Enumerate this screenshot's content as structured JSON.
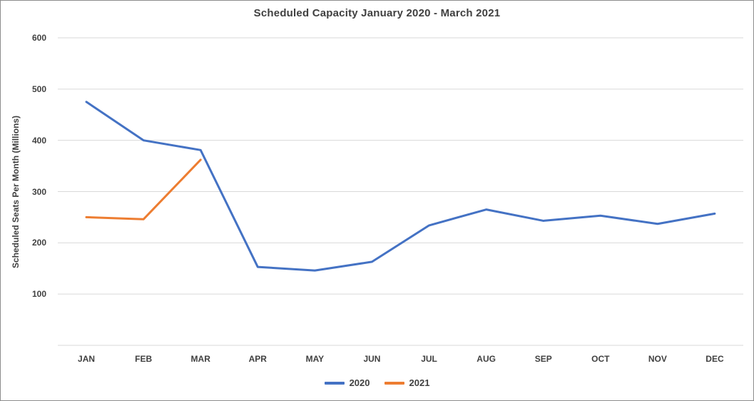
{
  "chart": {
    "title": "Scheduled Capacity January 2020 - March 2021",
    "y_axis_title": "Scheduled Seats Per Month (Millions)"
  },
  "chart_data": {
    "type": "line",
    "title": "Scheduled Capacity January 2020 - March 2021",
    "xlabel": "",
    "ylabel": "Scheduled Seats Per Month (Millions)",
    "categories": [
      "JAN",
      "FEB",
      "MAR",
      "APR",
      "MAY",
      "JUN",
      "JUL",
      "AUG",
      "SEP",
      "OCT",
      "NOV",
      "DEC"
    ],
    "series": [
      {
        "name": "2020",
        "color": "#4472C4",
        "values": [
          475,
          400,
          381,
          153,
          146,
          163,
          234,
          265,
          243,
          253,
          237,
          257
        ]
      },
      {
        "name": "2021",
        "color": "#ED7D31",
        "values": [
          250,
          246,
          362
        ]
      }
    ],
    "ylim": [
      0,
      600
    ],
    "yticks": [
      100,
      200,
      300,
      400,
      500,
      600
    ],
    "grid": true,
    "legend_position": "bottom"
  },
  "colors": {
    "gridline": "#D9D9D9",
    "axis_line": "#D9D9D9",
    "text": "#404040",
    "frame_border": "#8C8C8C",
    "background": "#FFFFFF",
    "series_2020": "#4472C4",
    "series_2021": "#ED7D31"
  }
}
